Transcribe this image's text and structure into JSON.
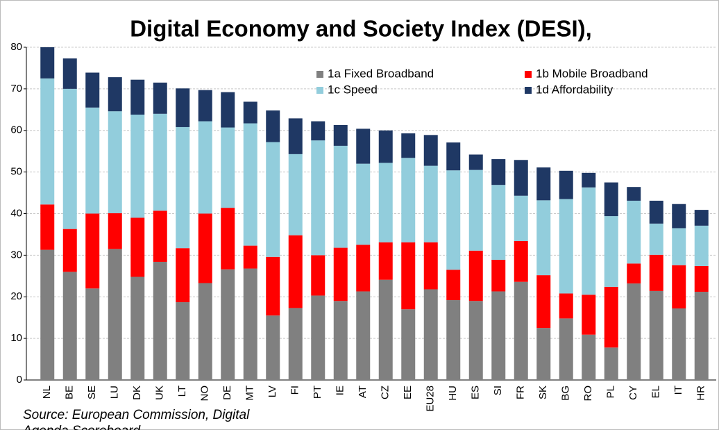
{
  "chart_data": {
    "type": "stacked_bar",
    "title": "Digital Economy and Society Index (DESI),",
    "source": [
      "Source: European Commission, Digital",
      "Agenda Scoreboard"
    ],
    "categories": [
      "NL",
      "BE",
      "SE",
      "LU",
      "DK",
      "UK",
      "LT",
      "NO",
      "DE",
      "MT",
      "LV",
      "FI",
      "PT",
      "IE",
      "AT",
      "CZ",
      "EE",
      "EU28",
      "HU",
      "ES",
      "SI",
      "FR",
      "SK",
      "BG",
      "RO",
      "PL",
      "CY",
      "EL",
      "IT",
      "HR"
    ],
    "series": [
      {
        "name": "1a Fixed Broadband",
        "color": "#808080",
        "values": [
          31.3,
          26,
          22,
          31.5,
          24.8,
          28.4,
          18.7,
          23.3,
          26.6,
          26.8,
          15.5,
          17.3,
          20.3,
          19,
          21.3,
          24.1,
          17,
          21.8,
          19.2,
          19,
          21.3,
          23.6,
          12.5,
          14.8,
          10.9,
          7.8,
          23.2,
          21.4,
          17.2,
          21.2
        ]
      },
      {
        "name": "1b Mobile Broadband",
        "color": "#ff0000",
        "values": [
          10.9,
          10.3,
          18,
          8.6,
          14.2,
          12.3,
          13,
          16.7,
          14.8,
          5.5,
          14.1,
          17.5,
          9.7,
          12.8,
          11.2,
          9,
          16.1,
          11.3,
          7.3,
          12.1,
          7.6,
          9.8,
          12.7,
          6,
          9.6,
          14.6,
          4.8,
          8.7,
          10.4,
          6.2
        ]
      },
      {
        "name": "1c Speed",
        "color": "#92cddc",
        "values": [
          30.3,
          33.7,
          25.5,
          24.5,
          24.8,
          23.3,
          29.1,
          22.2,
          19.3,
          29.4,
          27.6,
          19.5,
          27.6,
          24.5,
          19.5,
          19.1,
          20.3,
          18.4,
          23.9,
          19.4,
          18,
          10.9,
          18,
          22.7,
          25.8,
          17,
          15.1,
          7.5,
          8.9,
          9.7
        ]
      },
      {
        "name": "1d Affordability",
        "color": "#1f3864",
        "values": [
          7.5,
          7.3,
          8.4,
          8.2,
          8.4,
          7.5,
          9.3,
          7.5,
          8.5,
          5.2,
          7.6,
          8.6,
          4.6,
          5,
          8.4,
          7.8,
          5.9,
          7.4,
          6.7,
          3.7,
          6.2,
          8.6,
          7.9,
          6.8,
          3.5,
          8.1,
          3.3,
          5.5,
          5.8,
          3.8
        ]
      }
    ],
    "ylim": [
      0,
      80
    ],
    "yticks": [
      0,
      10,
      20,
      30,
      40,
      50,
      60,
      70,
      80
    ],
    "grid": true
  }
}
